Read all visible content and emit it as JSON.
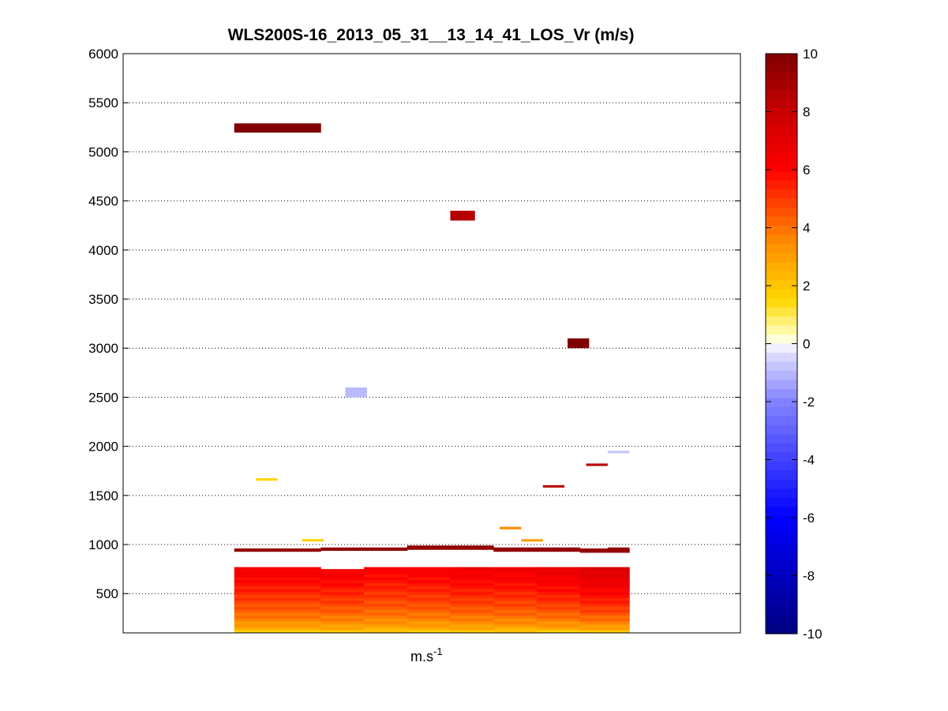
{
  "chart_data": {
    "type": "heatmap",
    "title": "WLS200S-16_2013_05_31__13_14_41_LOS_Vr (m/s)",
    "xlabel": "m.s",
    "xlabel_superscript": "-1",
    "ylabel": "",
    "ylim": [
      100,
      6000
    ],
    "yticks": [
      500,
      1000,
      1500,
      2000,
      2500,
      3000,
      3500,
      4000,
      4500,
      5000,
      5500,
      6000
    ],
    "grid": "horizontal dotted",
    "colorbar": {
      "range": [
        -10,
        10
      ],
      "ticks": [
        10,
        8,
        6,
        4,
        2,
        0,
        -2,
        -4,
        -6,
        -8,
        -10
      ],
      "position": "right"
    },
    "x_extent": [
      0,
      100
    ],
    "columns": [
      {
        "x": [
          18,
          32
        ],
        "ranges": [
          [
            100,
            770,
            6.5
          ],
          [
            930,
            960,
            9.5
          ],
          [
            5200,
            5290,
            10
          ]
        ]
      },
      {
        "x": [
          32,
          39
        ],
        "ranges": [
          [
            100,
            750,
            6.5
          ],
          [
            940,
            970,
            9.5
          ]
        ]
      },
      {
        "x": [
          39,
          46
        ],
        "ranges": [
          [
            100,
            770,
            6.3
          ],
          [
            940,
            970,
            9.5
          ]
        ]
      },
      {
        "x": [
          46,
          53
        ],
        "ranges": [
          [
            100,
            770,
            6.4
          ],
          [
            950,
            990,
            9.5
          ]
        ]
      },
      {
        "x": [
          53,
          60
        ],
        "ranges": [
          [
            100,
            770,
            6.6
          ],
          [
            950,
            990,
            9.5
          ]
        ]
      },
      {
        "x": [
          60,
          67
        ],
        "ranges": [
          [
            100,
            770,
            6.6
          ],
          [
            930,
            970,
            9.5
          ]
        ]
      },
      {
        "x": [
          67,
          74
        ],
        "ranges": [
          [
            100,
            770,
            6.9
          ],
          [
            930,
            970,
            9.5
          ]
        ]
      },
      {
        "x": [
          74,
          82
        ],
        "ranges": [
          [
            100,
            770,
            7.4
          ],
          [
            920,
            960,
            9.5
          ]
        ]
      },
      {
        "x": [
          82,
          82.1
        ],
        "ranges": []
      }
    ],
    "blocks": [
      {
        "x": [
          53,
          57
        ],
        "y": [
          4300,
          4400
        ],
        "value": 8.5
      },
      {
        "x": [
          36,
          39.5
        ],
        "y": [
          2500,
          2600
        ],
        "value": -1
      },
      {
        "x": [
          72,
          75.5
        ],
        "y": [
          3000,
          3100
        ],
        "value": 10
      },
      {
        "x": [
          78.5,
          82
        ],
        "y": [
          930,
          970
        ],
        "value": 9.5
      },
      {
        "x": [
          21.5,
          25
        ],
        "y": [
          1650,
          1675
        ],
        "value": 1.5
      },
      {
        "x": [
          29,
          32.5
        ],
        "y": [
          1030,
          1055
        ],
        "value": 1.6
      },
      {
        "x": [
          61,
          64.5
        ],
        "y": [
          1155,
          1180
        ],
        "value": 3.5
      },
      {
        "x": [
          64.5,
          68
        ],
        "y": [
          1030,
          1055
        ],
        "value": 3.0
      },
      {
        "x": [
          68,
          71.5
        ],
        "y": [
          1580,
          1605
        ],
        "value": 8.5
      },
      {
        "x": [
          75,
          78.5
        ],
        "y": [
          1800,
          1825
        ],
        "value": 8.5
      },
      {
        "x": [
          78.5,
          82
        ],
        "y": [
          1930,
          1955
        ],
        "value": -0.8
      }
    ]
  }
}
